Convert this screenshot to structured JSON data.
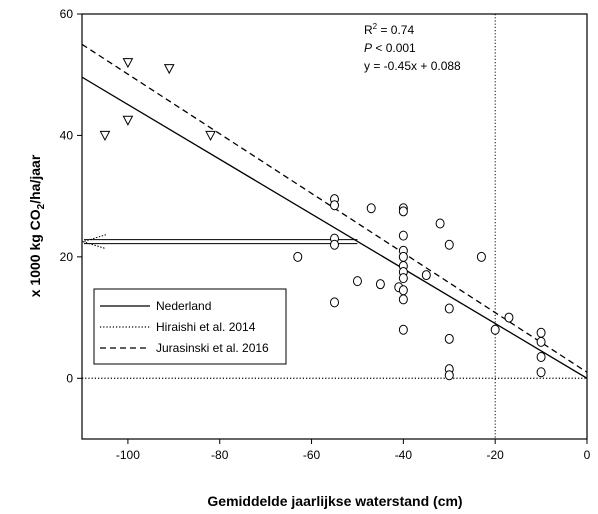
{
  "chart_data": {
    "type": "scatter",
    "xlabel": "Gemiddelde jaarlijkse waterstand (cm)",
    "ylabel_main": "x 1000 kg CO",
    "ylabel_sub": "2",
    "ylabel_tail": "/ha/jaar",
    "xlim": [
      -110,
      0
    ],
    "ylim": [
      -10,
      60
    ],
    "x_ticks": [
      -100,
      -80,
      -60,
      -40,
      -20,
      0
    ],
    "y_ticks": [
      0,
      20,
      40,
      60
    ],
    "annotation": {
      "r2_prefix": "R",
      "r2_sup": "2",
      "r2_value": " = 0.74",
      "p_label": "P",
      "p_value": " < 0.001",
      "equation": "y = -0.45x + 0.088"
    },
    "circles": [
      [
        -63,
        20
      ],
      [
        -55,
        29.5
      ],
      [
        -55,
        28.5
      ],
      [
        -55,
        23
      ],
      [
        -55,
        22
      ],
      [
        -55,
        12.5
      ],
      [
        -50,
        16
      ],
      [
        -47,
        28
      ],
      [
        -45,
        15.5
      ],
      [
        -41,
        15
      ],
      [
        -40,
        28
      ],
      [
        -40,
        27.5
      ],
      [
        -40,
        23.5
      ],
      [
        -40,
        21
      ],
      [
        -40,
        20
      ],
      [
        -40,
        18.5
      ],
      [
        -40,
        17.5
      ],
      [
        -40,
        16.5
      ],
      [
        -40,
        14.5
      ],
      [
        -40,
        13
      ],
      [
        -40,
        8
      ],
      [
        -35,
        17
      ],
      [
        -32,
        25.5
      ],
      [
        -30,
        22
      ],
      [
        -30,
        11.5
      ],
      [
        -30,
        6.5
      ],
      [
        -30,
        1.5
      ],
      [
        -30,
        0.5
      ],
      [
        -23,
        20
      ],
      [
        -20,
        8
      ],
      [
        -17,
        10
      ],
      [
        -10,
        7.5
      ],
      [
        -10,
        6
      ],
      [
        -10,
        3.5
      ],
      [
        -10,
        1
      ]
    ],
    "triangles": [
      [
        -100,
        52
      ],
      [
        -91,
        51
      ],
      [
        -100,
        42.5
      ],
      [
        -105,
        40
      ],
      [
        -82,
        40
      ]
    ],
    "series": [
      {
        "name": "Nederland",
        "style": "solid",
        "line": [
          [
            -110,
            49.6
          ],
          [
            0,
            0
          ]
        ]
      },
      {
        "name": "Hiraishi et al. 2014",
        "style": "dotted",
        "line": [
          [
            -110,
            0
          ],
          [
            0,
            0
          ]
        ]
      },
      {
        "name": "Jurasinski et al. 2016",
        "style": "dashed",
        "line": [
          [
            -110,
            55
          ],
          [
            0,
            1
          ]
        ]
      }
    ],
    "vertical_dotted_x": -20,
    "arrow": {
      "from": [
        -50,
        22.5
      ],
      "to": [
        -110,
        22.5
      ]
    },
    "grid": false,
    "legend_placement": "lower-left"
  }
}
